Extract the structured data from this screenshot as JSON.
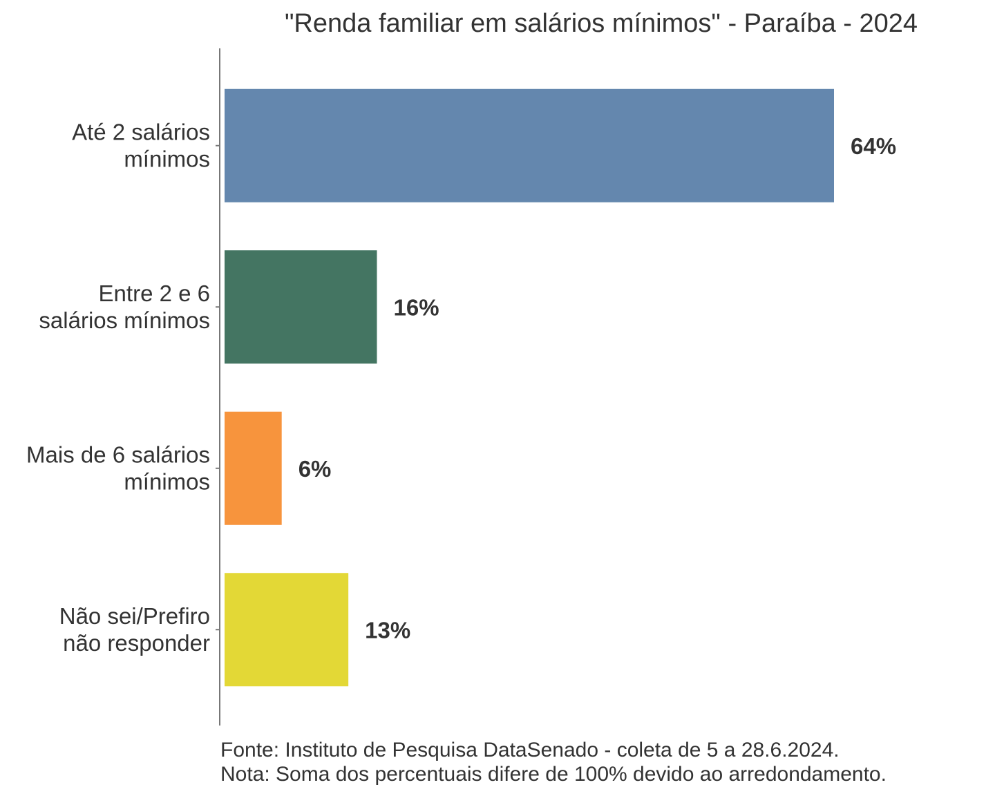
{
  "chart_data": {
    "type": "bar",
    "orientation": "horizontal",
    "title": "\"Renda familiar em salários mínimos\" - Paraíba - 2024",
    "categories": [
      [
        "Até 2 salários",
        "mínimos"
      ],
      [
        "Entre 2 e 6",
        "salários mínimos"
      ],
      [
        "Mais de 6 salários",
        "mínimos"
      ],
      [
        "Não sei/Prefiro",
        "não responder"
      ]
    ],
    "values": [
      64,
      16,
      6,
      13
    ],
    "value_labels": [
      "64%",
      "16%",
      "6%",
      "13%"
    ],
    "colors": [
      "#6487AE",
      "#447562",
      "#F7943D",
      "#E3D836"
    ],
    "xlabel": "",
    "ylabel": "",
    "xlim": [
      0,
      64
    ],
    "grid": false,
    "legend": "none"
  },
  "footnote": {
    "source": "Fonte: Instituto de Pesquisa DataSenado - coleta de 5 a 28.6.2024.",
    "note": "Nota: Soma dos percentuais difere de 100% devido ao arredondamento."
  }
}
